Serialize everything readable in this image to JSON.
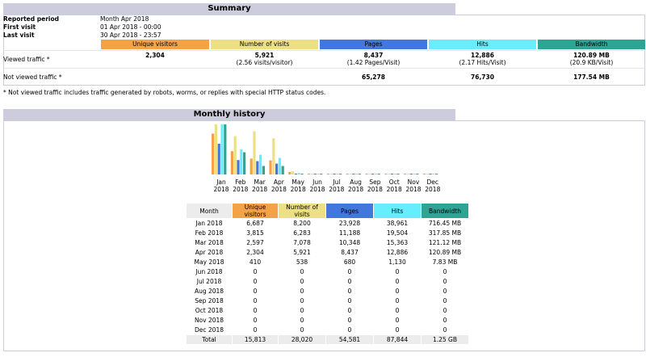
{
  "summary": {
    "title": "Summary",
    "reported_period_label": "Reported period",
    "reported_period_value": "Month Apr 2018",
    "first_visit_label": "First visit",
    "first_visit_value": "01 Apr 2018 - 00:00",
    "last_visit_label": "Last visit",
    "last_visit_value": "30 Apr 2018 - 23:57",
    "headers": {
      "unique_visitors": "Unique visitors",
      "visits": "Number of visits",
      "pages": "Pages",
      "hits": "Hits",
      "bandwidth": "Bandwidth"
    },
    "viewed": {
      "label": "Viewed traffic *",
      "unique_visitors": "2,304",
      "visits": "5,921",
      "visits_sub": "(2.56 visits/visitor)",
      "pages": "8,437",
      "pages_sub": "(1.42 Pages/Visit)",
      "hits": "12,886",
      "hits_sub": "(2.17 Hits/Visit)",
      "bandwidth": "120.89 MB",
      "bandwidth_sub": "(20.9 KB/Visit)"
    },
    "not_viewed": {
      "label": "Not viewed traffic *",
      "pages": "65,278",
      "hits": "76,730",
      "bandwidth": "177.54 MB"
    },
    "footnote": "* Not viewed traffic includes traffic generated by robots, worms, or replies with special HTTP status codes."
  },
  "history": {
    "title": "Monthly history",
    "columns": [
      "Month",
      "Unique visitors",
      "Number of visits",
      "Pages",
      "Hits",
      "Bandwidth"
    ],
    "rows": [
      [
        "Jan 2018",
        "6,687",
        "8,200",
        "23,928",
        "38,961",
        "716.45 MB"
      ],
      [
        "Feb 2018",
        "3,815",
        "6,283",
        "11,188",
        "19,504",
        "317.85 MB"
      ],
      [
        "Mar 2018",
        "2,597",
        "7,078",
        "10,348",
        "15,363",
        "121.12 MB"
      ],
      [
        "Apr 2018",
        "2,304",
        "5,921",
        "8,437",
        "12,886",
        "120.89 MB"
      ],
      [
        "May 2018",
        "410",
        "538",
        "680",
        "1,130",
        "7.83 MB"
      ],
      [
        "Jun 2018",
        "0",
        "0",
        "0",
        "0",
        "0"
      ],
      [
        "Jul 2018",
        "0",
        "0",
        "0",
        "0",
        "0"
      ],
      [
        "Aug 2018",
        "0",
        "0",
        "0",
        "0",
        "0"
      ],
      [
        "Sep 2018",
        "0",
        "0",
        "0",
        "0",
        "0"
      ],
      [
        "Oct 2018",
        "0",
        "0",
        "0",
        "0",
        "0"
      ],
      [
        "Nov 2018",
        "0",
        "0",
        "0",
        "0",
        "0"
      ],
      [
        "Dec 2018",
        "0",
        "0",
        "0",
        "0",
        "0"
      ]
    ],
    "total": [
      "Total",
      "15,813",
      "28,020",
      "54,581",
      "87,844",
      "1.25 GB"
    ]
  },
  "chart_data": {
    "type": "bar",
    "categories": [
      "Jan 2018",
      "Feb 2018",
      "Mar 2018",
      "Apr 2018",
      "May 2018",
      "Jun 2018",
      "Jul 2018",
      "Aug 2018",
      "Sep 2018",
      "Oct 2018",
      "Nov 2018",
      "Dec 2018"
    ],
    "month_labels": [
      "Jan",
      "Feb",
      "Mar",
      "Apr",
      "May",
      "Jun",
      "Jul",
      "Aug",
      "Sep",
      "Oct",
      "Nov",
      "Dec"
    ],
    "year_labels": [
      "2018",
      "2018",
      "2018",
      "2018",
      "2018",
      "2018",
      "2018",
      "2018",
      "2018",
      "2018",
      "2018",
      "2018"
    ],
    "series": [
      {
        "name": "Unique visitors",
        "color": "#f4a246",
        "values": [
          6687,
          3815,
          2597,
          2304,
          410,
          0,
          0,
          0,
          0,
          0,
          0,
          0
        ]
      },
      {
        "name": "Number of visits",
        "color": "#ecdf84",
        "values": [
          8200,
          6283,
          7078,
          5921,
          538,
          0,
          0,
          0,
          0,
          0,
          0,
          0
        ]
      },
      {
        "name": "Pages",
        "color": "#4477dd",
        "values": [
          23928,
          11188,
          10348,
          8437,
          680,
          0,
          0,
          0,
          0,
          0,
          0,
          0
        ]
      },
      {
        "name": "Hits",
        "color": "#66eeff",
        "values": [
          38961,
          19504,
          15363,
          12886,
          1130,
          0,
          0,
          0,
          0,
          0,
          0,
          0
        ]
      },
      {
        "name": "Bandwidth",
        "color": "#2ea495",
        "values": [
          716.45,
          317.85,
          121.12,
          120.89,
          7.83,
          0,
          0,
          0,
          0,
          0,
          0,
          0
        ]
      }
    ]
  },
  "colors": {
    "section_header": "#ccccdd",
    "unique_visitors": "#f4a246",
    "visits": "#ecdf84",
    "pages": "#4477dd",
    "hits": "#66eeff",
    "bandwidth": "#2ea495"
  }
}
